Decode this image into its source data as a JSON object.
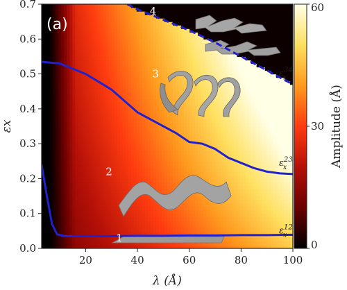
{
  "chart_data": {
    "type": "heatmap",
    "panel_label": "(a)",
    "xlabel": "λ (Å)",
    "ylabel": "εx",
    "xlim": [
      3,
      100
    ],
    "ylim": [
      0,
      0.7
    ],
    "x_ticks": [
      20,
      40,
      60,
      80,
      100
    ],
    "y_ticks": [
      0.0,
      0.1,
      0.2,
      0.3,
      0.4,
      0.5,
      0.6,
      0.7
    ],
    "colorbar": {
      "label": "Amplitude (Å)",
      "range": [
        0,
        60
      ],
      "ticks": [
        0,
        30,
        60
      ]
    },
    "colors": [
      "#000000",
      "#6a0000",
      "#b51008",
      "#ff3c10",
      "#ff9a1e",
      "#ffe060",
      "#ffffe6"
    ],
    "curve_color": "#2222cc",
    "regions": [
      {
        "label": "1",
        "x": 33,
        "y": 0.02
      },
      {
        "label": "2",
        "x": 29,
        "y": 0.21
      },
      {
        "label": "3",
        "x": 47,
        "y": 0.49
      },
      {
        "label": "4",
        "x": 46,
        "y": 0.67
      }
    ],
    "series": [
      {
        "name": "εx12",
        "label_base": "ε",
        "label_sup": "12",
        "label_sub": "x",
        "x": [
          3,
          5,
          7,
          9,
          12,
          20,
          30,
          40,
          50,
          60,
          70,
          80,
          90,
          100
        ],
        "y": [
          0.24,
          0.15,
          0.07,
          0.04,
          0.035,
          0.035,
          0.035,
          0.036,
          0.036,
          0.037,
          0.037,
          0.038,
          0.038,
          0.039
        ]
      },
      {
        "name": "εx23",
        "label_base": "ε",
        "label_sup": "23",
        "label_sub": "x",
        "x": [
          3,
          10,
          20,
          30,
          40,
          50,
          55,
          60,
          65,
          70,
          75,
          80,
          85,
          90,
          95,
          100
        ],
        "y": [
          0.535,
          0.53,
          0.5,
          0.455,
          0.39,
          0.35,
          0.33,
          0.305,
          0.3,
          0.285,
          0.26,
          0.245,
          0.23,
          0.22,
          0.215,
          0.213
        ]
      },
      {
        "name": "εx34",
        "label_base": "ε",
        "label_sup": "34",
        "label_sub": "x",
        "x": [
          36,
          40,
          50,
          60,
          70,
          80,
          90,
          100
        ],
        "y": [
          0.7,
          0.685,
          0.655,
          0.625,
          0.59,
          0.55,
          0.51,
          0.47
        ]
      }
    ]
  }
}
